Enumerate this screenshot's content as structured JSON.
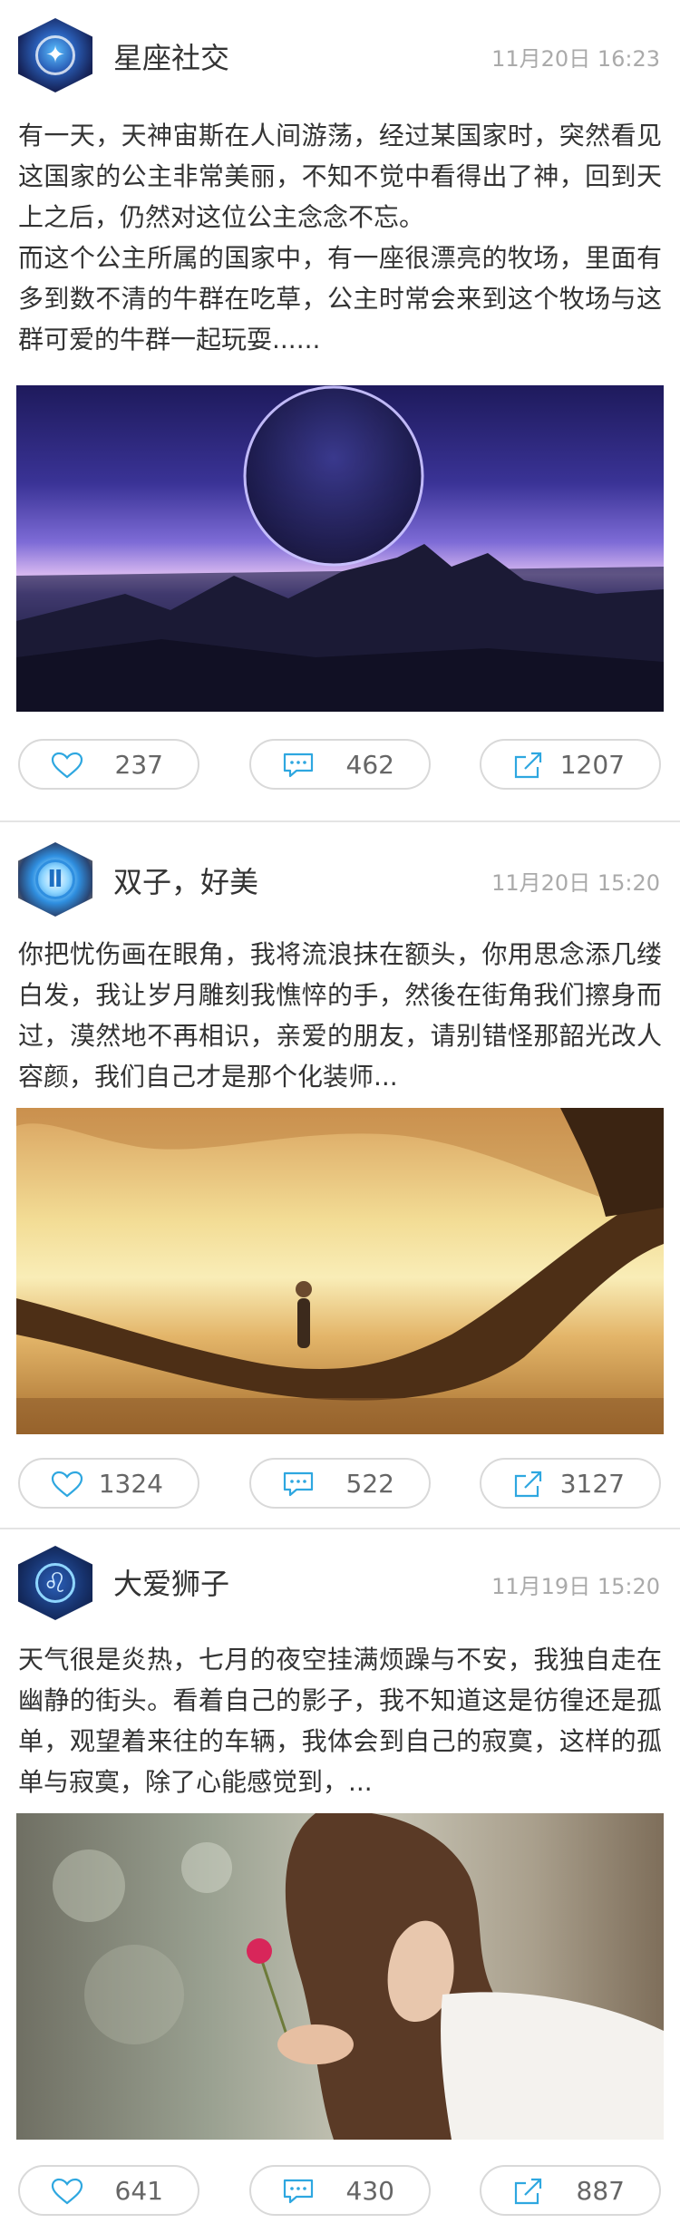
{
  "posts": [
    {
      "username": "星座社交",
      "time": "11月20日 16:23",
      "text": "有一天，天神宙斯在人间游荡，经过某国家时，突然看见这国家的公主非常美丽，不知不觉中看得出了神，回到天上之后，仍然对这位公主念念不忘。\n而这个公主所属的国家中，有一座很漂亮的牧场，里面有多到数不清的牛群在吃草，公主时常会来到这个牧场与这群可爱的牛群一起玩耍......",
      "likes": "237",
      "comments": "462",
      "shares": "1207"
    },
    {
      "username": "双子，好美",
      "time": "11月20日 15:20",
      "text": "你把忧伤画在眼角，我将流浪抹在额头，你用思念添几缕白发，我让岁月雕刻我憔悴的手，然後在街角我们擦身而过，漠然地不再相识，亲爱的朋友，请别错怪那韶光改人容颜，我们自己才是那个化装师...",
      "likes": "1324",
      "comments": "522",
      "shares": "3127"
    },
    {
      "username": "大爱狮子",
      "time": "11月19日 15:20",
      "text": "天气很是炎热，七月的夜空挂满烦躁与不安，我独自走在幽静的街头。看着自己的影子，我不知道这是彷徨还是孤单，观望着来往的车辆，我体会到自己的寂寞，这样的孤单与寂寞，除了心能感觉到，...",
      "likes": "641",
      "comments": "430",
      "shares": "887"
    }
  ],
  "icons": {
    "like": "heart-icon",
    "comment": "comment-icon",
    "share": "share-icon"
  },
  "colors": {
    "accent": "#2ea7e0",
    "border": "#d9d9d9",
    "time": "#aaaaaa"
  }
}
